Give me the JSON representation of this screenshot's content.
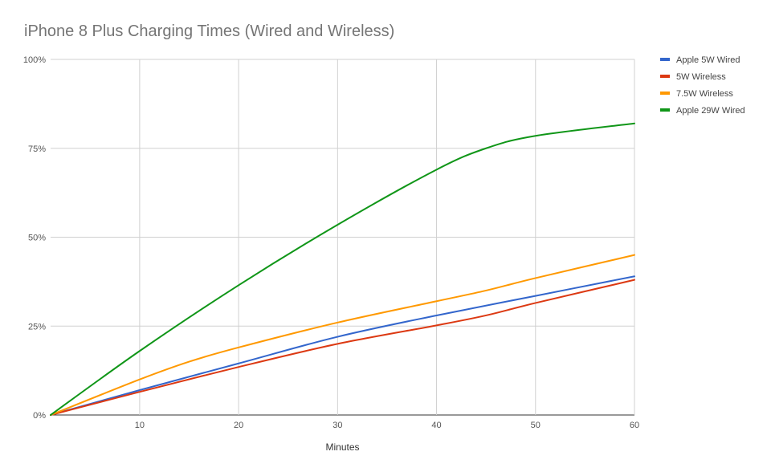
{
  "chart_data": {
    "type": "line",
    "title": "iPhone 8 Plus Charging Times (Wired and Wireless)",
    "xlabel": "Minutes",
    "ylabel": "",
    "xlim": [
      1,
      60
    ],
    "ylim": [
      0,
      100
    ],
    "x_ticks": [
      10,
      20,
      30,
      40,
      50,
      60
    ],
    "y_ticks": [
      0,
      25,
      50,
      75,
      100
    ],
    "y_tick_labels": [
      "0%",
      "25%",
      "50%",
      "75%",
      "100%"
    ],
    "grid": true,
    "legend_position": "right",
    "series": [
      {
        "name": "Apple 5W Wired",
        "color": "#3366cc",
        "points": [
          [
            1,
            0
          ],
          [
            10,
            7
          ],
          [
            20,
            14.5
          ],
          [
            30,
            22
          ],
          [
            40,
            28
          ],
          [
            50,
            33.5
          ],
          [
            60,
            39
          ]
        ]
      },
      {
        "name": "5W Wireless",
        "color": "#dc3912",
        "points": [
          [
            1,
            0
          ],
          [
            10,
            6.5
          ],
          [
            20,
            13.5
          ],
          [
            30,
            20
          ],
          [
            40,
            25.2
          ],
          [
            45,
            28
          ],
          [
            50,
            31.5
          ],
          [
            60,
            38
          ]
        ]
      },
      {
        "name": "7.5W Wireless",
        "color": "#ff9900",
        "points": [
          [
            1,
            0
          ],
          [
            10,
            10
          ],
          [
            15,
            15
          ],
          [
            20,
            19
          ],
          [
            30,
            26
          ],
          [
            40,
            32
          ],
          [
            45,
            35
          ],
          [
            50,
            38.5
          ],
          [
            60,
            45
          ]
        ]
      },
      {
        "name": "Apple 29W Wired",
        "color": "#109618",
        "points": [
          [
            1,
            0
          ],
          [
            10,
            18
          ],
          [
            20,
            36.5
          ],
          [
            30,
            53.5
          ],
          [
            40,
            69
          ],
          [
            45,
            75
          ],
          [
            50,
            78.5
          ],
          [
            60,
            82
          ]
        ]
      }
    ]
  }
}
